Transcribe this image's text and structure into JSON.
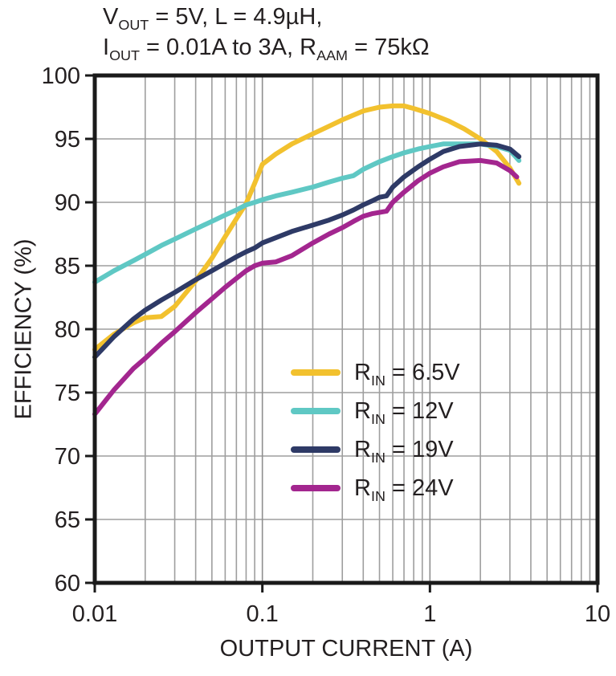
{
  "title": {
    "line1": {
      "p1": "V",
      "s1": "OUT",
      "p2": " = 5V, L = 4.9µH,"
    },
    "line2": {
      "p1": "I",
      "s1": "OUT",
      "p2": " = 0.01A to 3A, R",
      "s2": "AAM",
      "p3": " = 75kΩ"
    }
  },
  "chart_data": {
    "type": "line",
    "xlabel": "OUTPUT CURRENT (A)",
    "ylabel": "EFFICIENCY (%)",
    "xscale": "log",
    "xlim": [
      0.01,
      10
    ],
    "ylim": [
      60,
      100
    ],
    "grid": true,
    "legend_position": "inside lower-center",
    "x_ticks": [
      {
        "v": 0.01,
        "label": "0.01"
      },
      {
        "v": 0.1,
        "label": "0.1"
      },
      {
        "v": 1,
        "label": "1"
      },
      {
        "v": 10,
        "label": "10"
      }
    ],
    "y_ticks": [
      {
        "v": 60,
        "label": "60"
      },
      {
        "v": 65,
        "label": "65"
      },
      {
        "v": 70,
        "label": "70"
      },
      {
        "v": 75,
        "label": "75"
      },
      {
        "v": 80,
        "label": "80"
      },
      {
        "v": 85,
        "label": "85"
      },
      {
        "v": 90,
        "label": "90"
      },
      {
        "v": 95,
        "label": "95"
      },
      {
        "v": 100,
        "label": "100"
      }
    ],
    "series": [
      {
        "name": "RIN = 6.5V",
        "label_main": "R",
        "label_sub": "IN",
        "label_value": " = 6.5V",
        "color": "#F2C12E",
        "points": [
          [
            0.01,
            78.4
          ],
          [
            0.013,
            79.6
          ],
          [
            0.017,
            80.5
          ],
          [
            0.02,
            80.9
          ],
          [
            0.025,
            81.0
          ],
          [
            0.03,
            81.8
          ],
          [
            0.04,
            83.8
          ],
          [
            0.05,
            85.6
          ],
          [
            0.06,
            87.3
          ],
          [
            0.07,
            88.7
          ],
          [
            0.08,
            89.9
          ],
          [
            0.09,
            91.5
          ],
          [
            0.1,
            93.0
          ],
          [
            0.12,
            93.8
          ],
          [
            0.15,
            94.6
          ],
          [
            0.2,
            95.4
          ],
          [
            0.25,
            96.0
          ],
          [
            0.3,
            96.5
          ],
          [
            0.4,
            97.2
          ],
          [
            0.5,
            97.5
          ],
          [
            0.6,
            97.6
          ],
          [
            0.7,
            97.6
          ],
          [
            0.8,
            97.4
          ],
          [
            1,
            97.0
          ],
          [
            1.3,
            96.4
          ],
          [
            1.6,
            95.8
          ],
          [
            2,
            95.0
          ],
          [
            2.5,
            94.0
          ],
          [
            3,
            92.7
          ],
          [
            3.4,
            91.5
          ]
        ]
      },
      {
        "name": "RIN = 12V",
        "label_main": "R",
        "label_sub": "IN",
        "label_value": " = 12V",
        "color": "#5FC8C4",
        "points": [
          [
            0.01,
            83.7
          ],
          [
            0.013,
            84.6
          ],
          [
            0.017,
            85.4
          ],
          [
            0.02,
            85.9
          ],
          [
            0.025,
            86.6
          ],
          [
            0.03,
            87.1
          ],
          [
            0.04,
            87.9
          ],
          [
            0.05,
            88.5
          ],
          [
            0.06,
            89.0
          ],
          [
            0.07,
            89.4
          ],
          [
            0.08,
            89.8
          ],
          [
            0.09,
            90.0
          ],
          [
            0.1,
            90.2
          ],
          [
            0.12,
            90.5
          ],
          [
            0.15,
            90.8
          ],
          [
            0.2,
            91.2
          ],
          [
            0.25,
            91.6
          ],
          [
            0.3,
            91.9
          ],
          [
            0.35,
            92.1
          ],
          [
            0.4,
            92.6
          ],
          [
            0.5,
            93.2
          ],
          [
            0.6,
            93.6
          ],
          [
            0.7,
            93.9
          ],
          [
            0.85,
            94.2
          ],
          [
            1,
            94.4
          ],
          [
            1.2,
            94.6
          ],
          [
            1.5,
            94.6
          ],
          [
            2,
            94.6
          ],
          [
            2.5,
            94.4
          ],
          [
            3,
            94.1
          ],
          [
            3.4,
            93.3
          ]
        ]
      },
      {
        "name": "RIN = 19V",
        "label_main": "R",
        "label_sub": "IN",
        "label_value": " = 19V",
        "color": "#2E3A66",
        "points": [
          [
            0.01,
            77.8
          ],
          [
            0.013,
            79.4
          ],
          [
            0.017,
            80.8
          ],
          [
            0.02,
            81.5
          ],
          [
            0.025,
            82.3
          ],
          [
            0.03,
            82.9
          ],
          [
            0.04,
            83.9
          ],
          [
            0.05,
            84.6
          ],
          [
            0.06,
            85.2
          ],
          [
            0.07,
            85.7
          ],
          [
            0.08,
            86.1
          ],
          [
            0.09,
            86.4
          ],
          [
            0.1,
            86.8
          ],
          [
            0.12,
            87.2
          ],
          [
            0.15,
            87.7
          ],
          [
            0.2,
            88.2
          ],
          [
            0.25,
            88.6
          ],
          [
            0.3,
            89.0
          ],
          [
            0.35,
            89.4
          ],
          [
            0.4,
            89.8
          ],
          [
            0.45,
            90.1
          ],
          [
            0.5,
            90.4
          ],
          [
            0.55,
            90.5
          ],
          [
            0.6,
            91.2
          ],
          [
            0.7,
            92.0
          ],
          [
            0.85,
            92.8
          ],
          [
            1,
            93.4
          ],
          [
            1.2,
            94.0
          ],
          [
            1.5,
            94.4
          ],
          [
            2,
            94.6
          ],
          [
            2.5,
            94.5
          ],
          [
            3,
            94.2
          ],
          [
            3.4,
            93.6
          ]
        ]
      },
      {
        "name": "RIN = 24V",
        "label_main": "R",
        "label_sub": "IN",
        "label_value": " = 24V",
        "color": "#A3268F",
        "points": [
          [
            0.01,
            73.3
          ],
          [
            0.013,
            75.2
          ],
          [
            0.017,
            76.9
          ],
          [
            0.02,
            77.7
          ],
          [
            0.025,
            78.9
          ],
          [
            0.03,
            79.8
          ],
          [
            0.04,
            81.3
          ],
          [
            0.05,
            82.4
          ],
          [
            0.06,
            83.3
          ],
          [
            0.07,
            84.0
          ],
          [
            0.08,
            84.6
          ],
          [
            0.09,
            85.0
          ],
          [
            0.1,
            85.2
          ],
          [
            0.12,
            85.3
          ],
          [
            0.15,
            85.8
          ],
          [
            0.2,
            86.8
          ],
          [
            0.25,
            87.5
          ],
          [
            0.3,
            88.0
          ],
          [
            0.35,
            88.5
          ],
          [
            0.4,
            88.9
          ],
          [
            0.45,
            89.1
          ],
          [
            0.5,
            89.2
          ],
          [
            0.55,
            89.3
          ],
          [
            0.6,
            90.0
          ],
          [
            0.7,
            90.8
          ],
          [
            0.85,
            91.7
          ],
          [
            1,
            92.3
          ],
          [
            1.2,
            92.8
          ],
          [
            1.5,
            93.2
          ],
          [
            2,
            93.3
          ],
          [
            2.5,
            93.1
          ],
          [
            3,
            92.5
          ],
          [
            3.3,
            92.0
          ]
        ]
      }
    ]
  }
}
